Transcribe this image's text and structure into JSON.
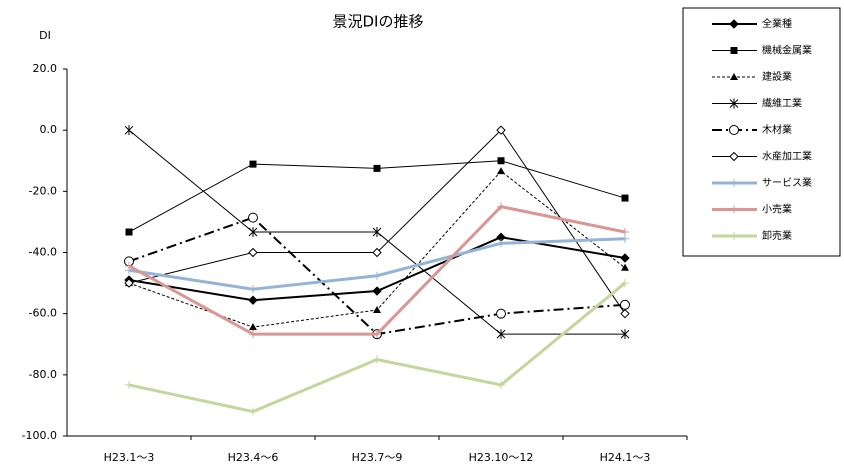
{
  "chart_data": {
    "type": "line",
    "title": "景況DIの推移",
    "y_label": "DI",
    "categories": [
      "H23.1～3",
      "H23.4～6",
      "H23.7～9",
      "H23.10～12",
      "H24.1～3"
    ],
    "ylim": [
      -100,
      20
    ],
    "yticks": [
      {
        "value": 20,
        "label": "20.0"
      },
      {
        "value": 0,
        "label": "0.0"
      },
      {
        "value": -20,
        "label": "-20.0"
      },
      {
        "value": -40,
        "label": "-40.0"
      },
      {
        "value": -60,
        "label": "-60.0"
      },
      {
        "value": -80,
        "label": "-80.0"
      },
      {
        "value": -100,
        "label": "-100.0"
      }
    ],
    "legend": "right",
    "series": [
      {
        "name": "全業種",
        "color": "#000000",
        "width": 2,
        "dash": "none",
        "marker": "diamond",
        "values": [
          -49,
          -55.6,
          -52.6,
          -35,
          -41.8
        ]
      },
      {
        "name": "機械金属業",
        "color": "#000000",
        "width": 1,
        "dash": "none",
        "marker": "square",
        "values": [
          -33.3,
          -11.1,
          -12.5,
          -10,
          -22.2
        ]
      },
      {
        "name": "建設業",
        "color": "#000000",
        "width": 1,
        "dash": "3,2",
        "marker": "triangle",
        "values": [
          -50,
          -64.4,
          -58.8,
          -13.4,
          -45
        ]
      },
      {
        "name": "繊維工業",
        "color": "#000000",
        "width": 1,
        "dash": "none",
        "marker": "star",
        "values": [
          0,
          -33.3,
          -33.3,
          -66.7,
          -66.7
        ]
      },
      {
        "name": "木材業",
        "color": "#000000",
        "width": 2,
        "dash": "10,4,2,4",
        "marker": "circle",
        "values": [
          -42.9,
          -28.6,
          -66.7,
          -60,
          -57.1
        ]
      },
      {
        "name": "水産加工業",
        "color": "#000000",
        "width": 1,
        "dash": "none",
        "marker": "open-diamond",
        "values": [
          -50,
          -40,
          -40,
          0,
          -60
        ]
      },
      {
        "name": "サービス業",
        "color": "#95b3d7",
        "width": 3,
        "dash": "none",
        "marker": "plus",
        "values": [
          -45.8,
          -52,
          -47.6,
          -37,
          -35.5
        ]
      },
      {
        "name": "小売業",
        "color": "#d99694",
        "width": 3,
        "dash": "none",
        "marker": "plus",
        "values": [
          -44.4,
          -66.7,
          -66.7,
          -25,
          -33.3
        ]
      },
      {
        "name": "卸売業",
        "color": "#c3d69b",
        "width": 3,
        "dash": "none",
        "marker": "plus",
        "values": [
          -83.3,
          -92,
          -75,
          -83.3,
          -50
        ]
      }
    ]
  }
}
